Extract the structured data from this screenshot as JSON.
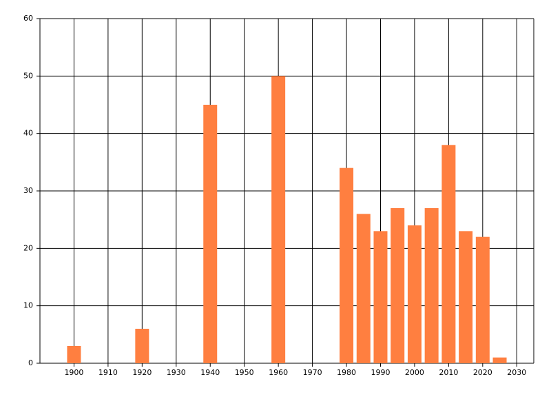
{
  "chart_data": {
    "type": "bar",
    "x": [
      1900,
      1920,
      1940,
      1960,
      1980,
      1985,
      1990,
      1995,
      2000,
      2005,
      2010,
      2015,
      2020,
      2025
    ],
    "values": [
      3,
      6,
      45,
      50,
      34,
      26,
      23,
      27,
      24,
      27,
      38,
      23,
      22,
      1
    ],
    "color": "#ff7f40",
    "xlim": [
      1890,
      2035
    ],
    "xticks": [
      1900,
      1910,
      1920,
      1930,
      1940,
      1950,
      1960,
      1970,
      1980,
      1990,
      2000,
      2010,
      2020,
      2030
    ],
    "ylim": [
      0,
      60
    ],
    "yticks": [
      0,
      10,
      20,
      30,
      40,
      50,
      60
    ],
    "grid": true
  }
}
